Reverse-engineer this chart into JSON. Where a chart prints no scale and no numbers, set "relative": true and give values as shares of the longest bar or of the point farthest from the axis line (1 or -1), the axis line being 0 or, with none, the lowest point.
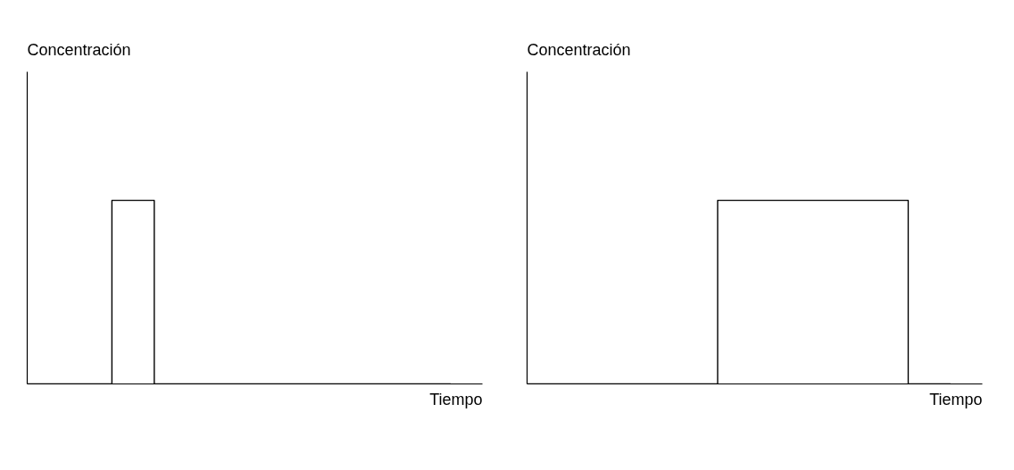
{
  "chart_data": [
    {
      "type": "step",
      "xlabel": "Tiempo",
      "ylabel": "Concentración",
      "relative": true,
      "categories": [
        null,
        null,
        null,
        null,
        null,
        null,
        null,
        null,
        null,
        null,
        null,
        null,
        null,
        null,
        null,
        null,
        null,
        null,
        null,
        null,
        null
      ],
      "series": [
        {
          "color": "#000000",
          "values": [
            0,
            0,
            0,
            0,
            1,
            1,
            0,
            0,
            0,
            0,
            0,
            0,
            0,
            0,
            0,
            0,
            0,
            0,
            0,
            0,
            0
          ]
        }
      ]
    },
    {
      "type": "step",
      "xlabel": "Tiempo",
      "ylabel": "Concentración",
      "relative": true,
      "categories": [
        null,
        null,
        null,
        null,
        null,
        null,
        null,
        null,
        null,
        null,
        null,
        null,
        null,
        null,
        null,
        null,
        null,
        null,
        null,
        null,
        null
      ],
      "series": [
        {
          "color": "#000000",
          "values": [
            0,
            0,
            0,
            0,
            0,
            0,
            0,
            0,
            0,
            1,
            1,
            1,
            1,
            1,
            1,
            1,
            1,
            1,
            0,
            0,
            0
          ]
        }
      ]
    }
  ]
}
